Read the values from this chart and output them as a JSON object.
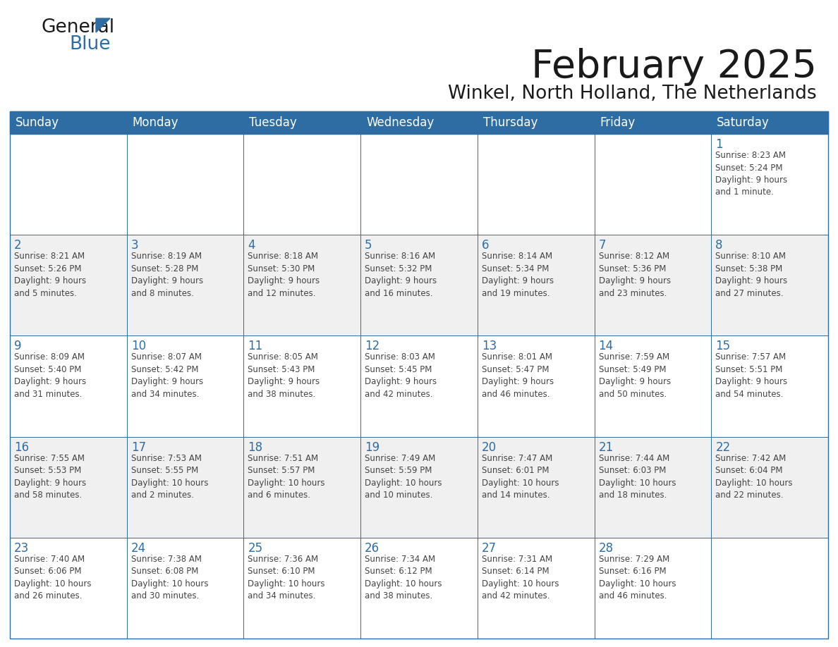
{
  "title": "February 2025",
  "subtitle": "Winkel, North Holland, The Netherlands",
  "header_color": "#2E6DA4",
  "header_text_color": "#FFFFFF",
  "cell_bg_color": "#FFFFFF",
  "alt_cell_bg_color": "#F0F0F0",
  "border_color": "#2E6DA4",
  "text_color": "#444444",
  "day_headers": [
    "Sunday",
    "Monday",
    "Tuesday",
    "Wednesday",
    "Thursday",
    "Friday",
    "Saturday"
  ],
  "weeks": [
    [
      {
        "day": "",
        "info": ""
      },
      {
        "day": "",
        "info": ""
      },
      {
        "day": "",
        "info": ""
      },
      {
        "day": "",
        "info": ""
      },
      {
        "day": "",
        "info": ""
      },
      {
        "day": "",
        "info": ""
      },
      {
        "day": "1",
        "info": "Sunrise: 8:23 AM\nSunset: 5:24 PM\nDaylight: 9 hours\nand 1 minute."
      }
    ],
    [
      {
        "day": "2",
        "info": "Sunrise: 8:21 AM\nSunset: 5:26 PM\nDaylight: 9 hours\nand 5 minutes."
      },
      {
        "day": "3",
        "info": "Sunrise: 8:19 AM\nSunset: 5:28 PM\nDaylight: 9 hours\nand 8 minutes."
      },
      {
        "day": "4",
        "info": "Sunrise: 8:18 AM\nSunset: 5:30 PM\nDaylight: 9 hours\nand 12 minutes."
      },
      {
        "day": "5",
        "info": "Sunrise: 8:16 AM\nSunset: 5:32 PM\nDaylight: 9 hours\nand 16 minutes."
      },
      {
        "day": "6",
        "info": "Sunrise: 8:14 AM\nSunset: 5:34 PM\nDaylight: 9 hours\nand 19 minutes."
      },
      {
        "day": "7",
        "info": "Sunrise: 8:12 AM\nSunset: 5:36 PM\nDaylight: 9 hours\nand 23 minutes."
      },
      {
        "day": "8",
        "info": "Sunrise: 8:10 AM\nSunset: 5:38 PM\nDaylight: 9 hours\nand 27 minutes."
      }
    ],
    [
      {
        "day": "9",
        "info": "Sunrise: 8:09 AM\nSunset: 5:40 PM\nDaylight: 9 hours\nand 31 minutes."
      },
      {
        "day": "10",
        "info": "Sunrise: 8:07 AM\nSunset: 5:42 PM\nDaylight: 9 hours\nand 34 minutes."
      },
      {
        "day": "11",
        "info": "Sunrise: 8:05 AM\nSunset: 5:43 PM\nDaylight: 9 hours\nand 38 minutes."
      },
      {
        "day": "12",
        "info": "Sunrise: 8:03 AM\nSunset: 5:45 PM\nDaylight: 9 hours\nand 42 minutes."
      },
      {
        "day": "13",
        "info": "Sunrise: 8:01 AM\nSunset: 5:47 PM\nDaylight: 9 hours\nand 46 minutes."
      },
      {
        "day": "14",
        "info": "Sunrise: 7:59 AM\nSunset: 5:49 PM\nDaylight: 9 hours\nand 50 minutes."
      },
      {
        "day": "15",
        "info": "Sunrise: 7:57 AM\nSunset: 5:51 PM\nDaylight: 9 hours\nand 54 minutes."
      }
    ],
    [
      {
        "day": "16",
        "info": "Sunrise: 7:55 AM\nSunset: 5:53 PM\nDaylight: 9 hours\nand 58 minutes."
      },
      {
        "day": "17",
        "info": "Sunrise: 7:53 AM\nSunset: 5:55 PM\nDaylight: 10 hours\nand 2 minutes."
      },
      {
        "day": "18",
        "info": "Sunrise: 7:51 AM\nSunset: 5:57 PM\nDaylight: 10 hours\nand 6 minutes."
      },
      {
        "day": "19",
        "info": "Sunrise: 7:49 AM\nSunset: 5:59 PM\nDaylight: 10 hours\nand 10 minutes."
      },
      {
        "day": "20",
        "info": "Sunrise: 7:47 AM\nSunset: 6:01 PM\nDaylight: 10 hours\nand 14 minutes."
      },
      {
        "day": "21",
        "info": "Sunrise: 7:44 AM\nSunset: 6:03 PM\nDaylight: 10 hours\nand 18 minutes."
      },
      {
        "day": "22",
        "info": "Sunrise: 7:42 AM\nSunset: 6:04 PM\nDaylight: 10 hours\nand 22 minutes."
      }
    ],
    [
      {
        "day": "23",
        "info": "Sunrise: 7:40 AM\nSunset: 6:06 PM\nDaylight: 10 hours\nand 26 minutes."
      },
      {
        "day": "24",
        "info": "Sunrise: 7:38 AM\nSunset: 6:08 PM\nDaylight: 10 hours\nand 30 minutes."
      },
      {
        "day": "25",
        "info": "Sunrise: 7:36 AM\nSunset: 6:10 PM\nDaylight: 10 hours\nand 34 minutes."
      },
      {
        "day": "26",
        "info": "Sunrise: 7:34 AM\nSunset: 6:12 PM\nDaylight: 10 hours\nand 38 minutes."
      },
      {
        "day": "27",
        "info": "Sunrise: 7:31 AM\nSunset: 6:14 PM\nDaylight: 10 hours\nand 42 minutes."
      },
      {
        "day": "28",
        "info": "Sunrise: 7:29 AM\nSunset: 6:16 PM\nDaylight: 10 hours\nand 46 minutes."
      },
      {
        "day": "",
        "info": ""
      }
    ]
  ],
  "logo_text_general": "General",
  "logo_text_blue": "Blue",
  "logo_color_general": "#1a1a1a",
  "logo_color_blue": "#2E6DA4",
  "logo_triangle_color": "#2E6DA4",
  "fig_width": 11.88,
  "fig_height": 9.18,
  "dpi": 100
}
